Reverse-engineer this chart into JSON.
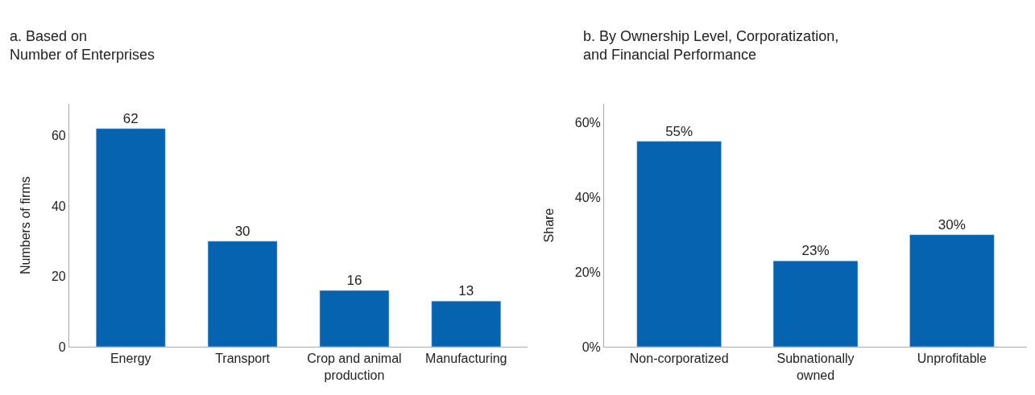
{
  "chart_data": [
    {
      "type": "bar",
      "title": "a. Based on\nNumber of Enterprises",
      "ylabel": "Numbers of firms",
      "categories": [
        "Energy",
        "Transport",
        "Crop and animal production",
        "Manufacturing"
      ],
      "values": [
        62,
        30,
        16,
        13
      ],
      "color": "#0563b0",
      "ylim": [
        0,
        69
      ],
      "yticks": [
        0,
        20,
        40,
        60
      ],
      "data_labels": true
    },
    {
      "type": "bar",
      "title": "b. By Ownership Level, Corporatization,\nand Financial Performance",
      "ylabel": "Share",
      "categories": [
        "Non-corporatized",
        "Subnationally owned",
        "Unprofitable"
      ],
      "values": [
        55,
        23,
        30
      ],
      "value_labels": [
        "55%",
        "23%",
        "30%"
      ],
      "color": "#0563b0",
      "ylim": [
        0,
        65
      ],
      "yticks": [
        {
          "value": 0,
          "label": "0%"
        },
        {
          "value": 20,
          "label": "20%"
        },
        {
          "value": 40,
          "label": "40%"
        },
        {
          "value": 60,
          "label": "60%"
        }
      ]
    }
  ]
}
